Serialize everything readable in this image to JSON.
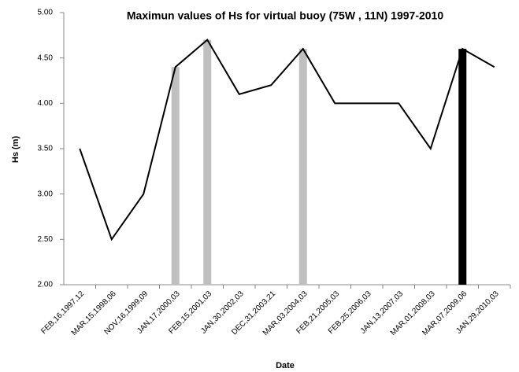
{
  "chart_data": {
    "type": "line",
    "title": "Maximun values of Hs for virtual buoy (75W , 11N) 1997-2010",
    "x_label": "Date",
    "y_label": "Hs (m)",
    "categories": [
      "FEB,16,1997,12",
      "MAR,15,1998,06",
      "NOV,16,1999,09",
      "JAN,17,2000,03",
      "FEB,15,2001,03",
      "JAN,30,2002,03",
      "DEC,31,2003,21",
      "MAR,03,2004,03",
      "FEB,21,2005,03",
      "FEB,25,2006,03",
      "JAN,13,2007,03",
      "MAR,01,2008,03",
      "MAR,07,2009,06",
      "JAN,29,2010,03"
    ],
    "series": [
      {
        "type": "line",
        "color": "#000000",
        "values": [
          3.5,
          2.5,
          3.0,
          4.4,
          4.7,
          4.1,
          4.2,
          4.6,
          4.0,
          4.0,
          4.0,
          3.5,
          4.6,
          4.4
        ]
      },
      {
        "type": "bar",
        "color": "#bfbfbf",
        "values": [
          null,
          null,
          null,
          4.4,
          4.7,
          null,
          null,
          4.6,
          null,
          null,
          null,
          null,
          null,
          null
        ]
      },
      {
        "type": "bar",
        "color": "#000000",
        "values": [
          null,
          null,
          null,
          null,
          null,
          null,
          null,
          null,
          null,
          null,
          null,
          null,
          4.6,
          null
        ]
      }
    ],
    "ylim": [
      2,
      5
    ],
    "yticks": [
      {
        "value": 2,
        "label": "2.00"
      },
      {
        "value": 2.5,
        "label": "2.50"
      },
      {
        "value": 3,
        "label": "3.00"
      },
      {
        "value": 3.5,
        "label": "3.50"
      },
      {
        "value": 4,
        "label": "4.00"
      },
      {
        "value": 4.5,
        "label": "4.50"
      },
      {
        "value": 5,
        "label": "5.00"
      }
    ],
    "grid": false
  }
}
